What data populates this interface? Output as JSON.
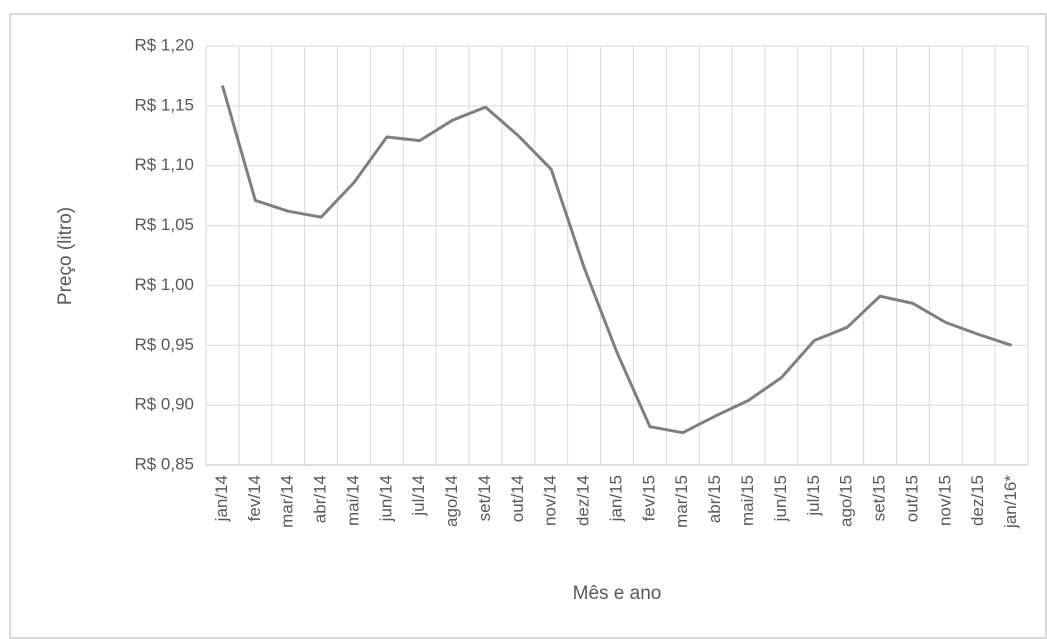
{
  "chart_data": {
    "type": "line",
    "x_label": "Mês e ano",
    "y_label": "Preço (litro)",
    "categories": [
      "jan/14",
      "fev/14",
      "mar/14",
      "abr/14",
      "mai/14",
      "jun/14",
      "jul/14",
      "ago/14",
      "set/14",
      "out/14",
      "nov/14",
      "dez/14",
      "jan/15",
      "fev/15",
      "mar/15",
      "abr/15",
      "mai/15",
      "jun/15",
      "jul/15",
      "ago/15",
      "set/15",
      "out/15",
      "nov/15",
      "dez/15",
      "jan/16*"
    ],
    "color": "#7f7f7f",
    "values": [
      1.167,
      1.071,
      1.062,
      1.057,
      1.086,
      1.124,
      1.121,
      1.138,
      1.149,
      1.125,
      1.097,
      1.015,
      0.944,
      0.882,
      0.877,
      0.891,
      0.904,
      0.923,
      0.954,
      0.965,
      0.991,
      0.985,
      0.969,
      0.959,
      0.95
    ],
    "ylim": [
      0.85,
      1.2
    ],
    "yticks": [
      {
        "value": 0.85,
        "label": "R$ 0,85"
      },
      {
        "value": 0.9,
        "label": "R$ 0,90"
      },
      {
        "value": 0.95,
        "label": "R$ 0,95"
      },
      {
        "value": 1.0,
        "label": "R$ 1,00"
      },
      {
        "value": 1.05,
        "label": "R$ 1,05"
      },
      {
        "value": 1.1,
        "label": "R$ 1,10"
      },
      {
        "value": 1.15,
        "label": "R$ 1,15"
      },
      {
        "value": 1.2,
        "label": "R$ 1,20"
      }
    ],
    "grid": true
  }
}
